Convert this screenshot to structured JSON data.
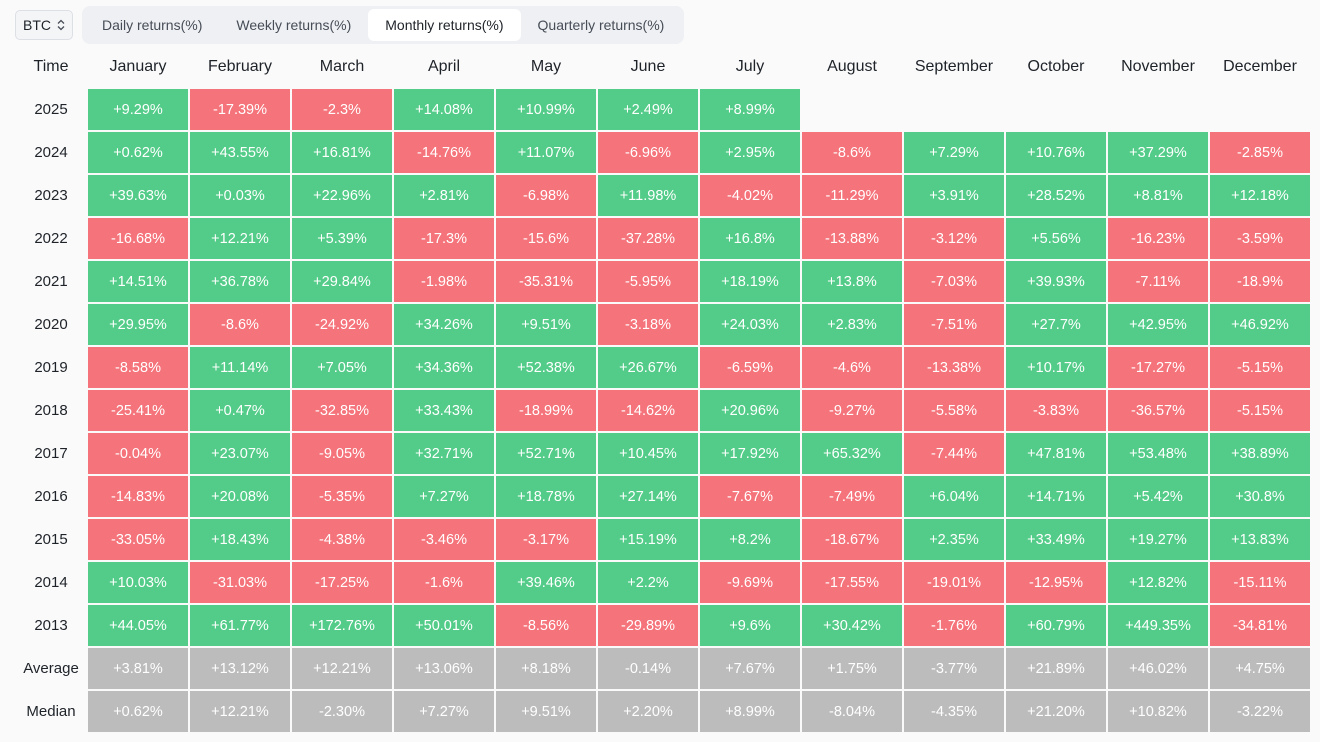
{
  "asset_select": {
    "value": "BTC",
    "icon": "up-down-chevron-icon"
  },
  "tabs": [
    {
      "label": "Daily returns(%)",
      "active": false
    },
    {
      "label": "Weekly returns(%)",
      "active": false
    },
    {
      "label": "Monthly returns(%)",
      "active": true
    },
    {
      "label": "Quarterly returns(%)",
      "active": false
    }
  ],
  "colors": {
    "positive": "#52cc88",
    "negative": "#f5737a",
    "summary": "#bcbcbc"
  },
  "table": {
    "corner_label": "Time",
    "columns": [
      "January",
      "February",
      "March",
      "April",
      "May",
      "June",
      "July",
      "August",
      "September",
      "October",
      "November",
      "December"
    ],
    "rows": [
      {
        "label": "2025",
        "values": [
          "+9.29%",
          "-17.39%",
          "-2.3%",
          "+14.08%",
          "+10.99%",
          "+2.49%",
          "+8.99%",
          "",
          "",
          "",
          "",
          ""
        ]
      },
      {
        "label": "2024",
        "values": [
          "+0.62%",
          "+43.55%",
          "+16.81%",
          "-14.76%",
          "+11.07%",
          "-6.96%",
          "+2.95%",
          "-8.6%",
          "+7.29%",
          "+10.76%",
          "+37.29%",
          "-2.85%"
        ]
      },
      {
        "label": "2023",
        "values": [
          "+39.63%",
          "+0.03%",
          "+22.96%",
          "+2.81%",
          "-6.98%",
          "+11.98%",
          "-4.02%",
          "-11.29%",
          "+3.91%",
          "+28.52%",
          "+8.81%",
          "+12.18%"
        ]
      },
      {
        "label": "2022",
        "values": [
          "-16.68%",
          "+12.21%",
          "+5.39%",
          "-17.3%",
          "-15.6%",
          "-37.28%",
          "+16.8%",
          "-13.88%",
          "-3.12%",
          "+5.56%",
          "-16.23%",
          "-3.59%"
        ]
      },
      {
        "label": "2021",
        "values": [
          "+14.51%",
          "+36.78%",
          "+29.84%",
          "-1.98%",
          "-35.31%",
          "-5.95%",
          "+18.19%",
          "+13.8%",
          "-7.03%",
          "+39.93%",
          "-7.11%",
          "-18.9%"
        ]
      },
      {
        "label": "2020",
        "values": [
          "+29.95%",
          "-8.6%",
          "-24.92%",
          "+34.26%",
          "+9.51%",
          "-3.18%",
          "+24.03%",
          "+2.83%",
          "-7.51%",
          "+27.7%",
          "+42.95%",
          "+46.92%"
        ]
      },
      {
        "label": "2019",
        "values": [
          "-8.58%",
          "+11.14%",
          "+7.05%",
          "+34.36%",
          "+52.38%",
          "+26.67%",
          "-6.59%",
          "-4.6%",
          "-13.38%",
          "+10.17%",
          "-17.27%",
          "-5.15%"
        ]
      },
      {
        "label": "2018",
        "values": [
          "-25.41%",
          "+0.47%",
          "-32.85%",
          "+33.43%",
          "-18.99%",
          "-14.62%",
          "+20.96%",
          "-9.27%",
          "-5.58%",
          "-3.83%",
          "-36.57%",
          "-5.15%"
        ]
      },
      {
        "label": "2017",
        "values": [
          "-0.04%",
          "+23.07%",
          "-9.05%",
          "+32.71%",
          "+52.71%",
          "+10.45%",
          "+17.92%",
          "+65.32%",
          "-7.44%",
          "+47.81%",
          "+53.48%",
          "+38.89%"
        ]
      },
      {
        "label": "2016",
        "values": [
          "-14.83%",
          "+20.08%",
          "-5.35%",
          "+7.27%",
          "+18.78%",
          "+27.14%",
          "-7.67%",
          "-7.49%",
          "+6.04%",
          "+14.71%",
          "+5.42%",
          "+30.8%"
        ]
      },
      {
        "label": "2015",
        "values": [
          "-33.05%",
          "+18.43%",
          "-4.38%",
          "-3.46%",
          "-3.17%",
          "+15.19%",
          "+8.2%",
          "-18.67%",
          "+2.35%",
          "+33.49%",
          "+19.27%",
          "+13.83%"
        ]
      },
      {
        "label": "2014",
        "values": [
          "+10.03%",
          "-31.03%",
          "-17.25%",
          "-1.6%",
          "+39.46%",
          "+2.2%",
          "-9.69%",
          "-17.55%",
          "-19.01%",
          "-12.95%",
          "+12.82%",
          "-15.11%"
        ]
      },
      {
        "label": "2013",
        "values": [
          "+44.05%",
          "+61.77%",
          "+172.76%",
          "+50.01%",
          "-8.56%",
          "-29.89%",
          "+9.6%",
          "+30.42%",
          "-1.76%",
          "+60.79%",
          "+449.35%",
          "-34.81%"
        ]
      }
    ],
    "summary_rows": [
      {
        "label": "Average",
        "values": [
          "+3.81%",
          "+13.12%",
          "+12.21%",
          "+13.06%",
          "+8.18%",
          "-0.14%",
          "+7.67%",
          "+1.75%",
          "-3.77%",
          "+21.89%",
          "+46.02%",
          "+4.75%"
        ]
      },
      {
        "label": "Median",
        "values": [
          "+0.62%",
          "+12.21%",
          "-2.30%",
          "+7.27%",
          "+9.51%",
          "+2.20%",
          "+8.99%",
          "-8.04%",
          "-4.35%",
          "+21.20%",
          "+10.82%",
          "-3.22%"
        ]
      }
    ]
  }
}
